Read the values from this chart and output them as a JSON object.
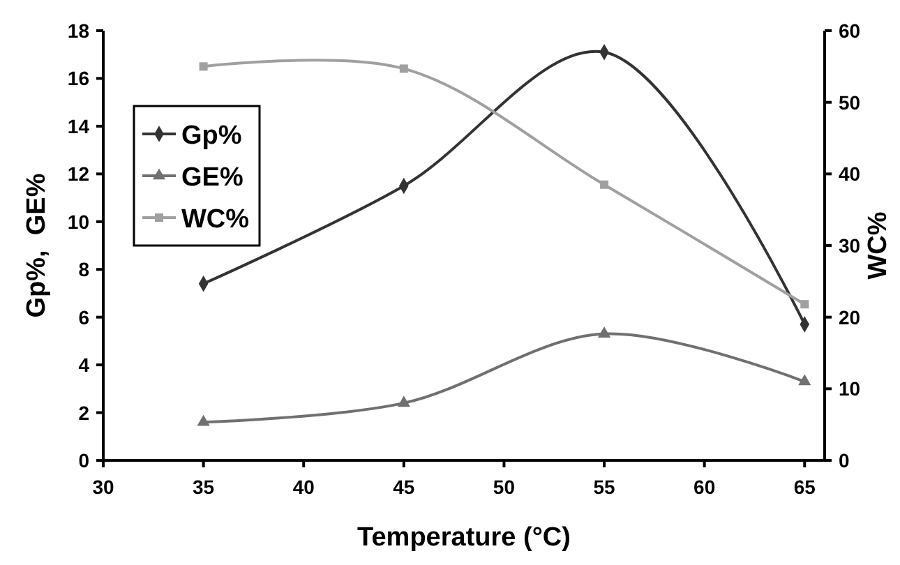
{
  "chart_data": {
    "type": "line",
    "xlabel": "Temperature (°C)",
    "ylabel": "Gp%,  GE%",
    "y2label": "WC%",
    "x": [
      35,
      45,
      55,
      65
    ],
    "series": [
      {
        "name": "Gp%",
        "color": "#333333",
        "marker": "diamond",
        "values": [
          7.4,
          11.5,
          17.1,
          5.7
        ]
      },
      {
        "name": "GE%",
        "color": "#707070",
        "marker": "triangle",
        "values": [
          1.6,
          2.4,
          5.3,
          3.3
        ]
      },
      {
        "name": "WC%",
        "color": "#a0a0a0",
        "marker": "square",
        "axis": "y2",
        "values": [
          55,
          54.7,
          38.5,
          21.8
        ]
      }
    ],
    "xlim": [
      30,
      66
    ],
    "xticks": [
      30,
      35,
      40,
      45,
      50,
      55,
      60,
      65
    ],
    "ylim": [
      0,
      18
    ],
    "yticks": [
      0,
      2,
      4,
      6,
      8,
      10,
      12,
      14,
      16,
      18
    ],
    "y2lim": [
      0,
      60
    ],
    "y2ticks": [
      0,
      10,
      20,
      30,
      40,
      50,
      60
    ],
    "grid": false,
    "legend": "top left"
  }
}
